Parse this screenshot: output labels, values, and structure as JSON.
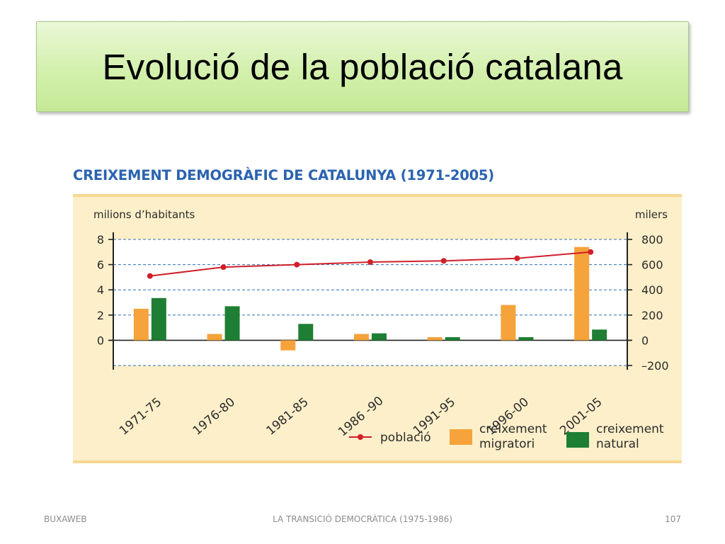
{
  "slide": {
    "title": "Evolució de la població catalana",
    "footer_left": "BUXAWEB",
    "footer_center": "LA TRANSICIÓ DEMOCRÀTICA (1975-1986)",
    "footer_right": "107"
  },
  "colors": {
    "title_bg": "#d3f0ad",
    "heading": "#2a63b0",
    "panel_bg": "#fcefc9",
    "poblacio_line": "#d0202a",
    "migratori_bar": "#f5a33a",
    "natural_bar": "#1e7f34",
    "gridline": "#2d6db5"
  },
  "chart_data": {
    "type": "bar",
    "title": "CREIXEMENT DEMOGRÀFIC DE CATALUNYA (1971-2005)",
    "left_axis_label": "milions d’habitants",
    "right_axis_label": "milers",
    "categories": [
      "1971-75",
      "1976-80",
      "1981-85",
      "1986 -90",
      "1991-95",
      "1996-00",
      "2001-05"
    ],
    "left_ticks": [
      "8",
      "6",
      "4",
      "2",
      "0"
    ],
    "right_ticks": [
      "800",
      "600",
      "400",
      "200",
      "0",
      "–200"
    ],
    "left_ylim": [
      -2,
      8
    ],
    "right_ylim": [
      -200,
      800
    ],
    "grid": true,
    "series": [
      {
        "name": "població",
        "type": "line",
        "axis": "left",
        "values": [
          5.1,
          5.8,
          6.0,
          6.2,
          6.3,
          6.5,
          7.0
        ]
      },
      {
        "name": "creixement migratori",
        "type": "bar",
        "axis": "right",
        "values": [
          250,
          50,
          -80,
          50,
          25,
          280,
          740
        ]
      },
      {
        "name": "creixement natural",
        "type": "bar",
        "axis": "right",
        "values": [
          335,
          270,
          130,
          55,
          25,
          25,
          85
        ]
      }
    ],
    "legend": {
      "position": "bottom-right",
      "items": [
        {
          "lines": [
            "població"
          ]
        },
        {
          "lines": [
            "creixement",
            "migratori"
          ]
        },
        {
          "lines": [
            "creixement",
            "natural"
          ]
        }
      ]
    }
  }
}
